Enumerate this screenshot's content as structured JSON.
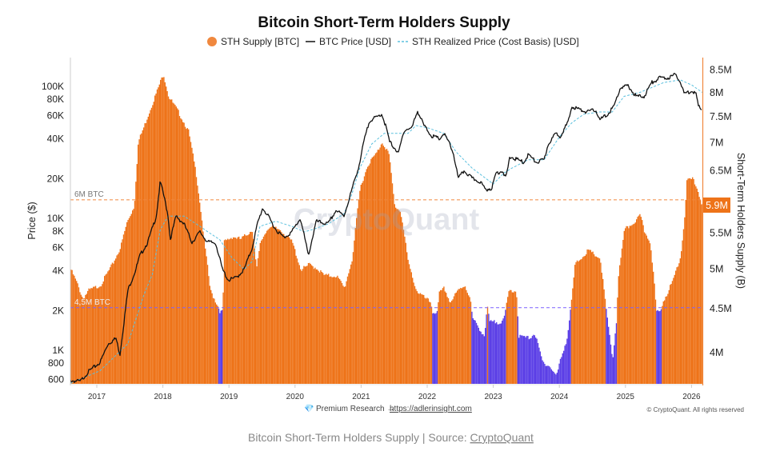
{
  "chart_data": {
    "type": "bar+line",
    "title": "Bitcoin Short-Term Holders Supply",
    "legend": {
      "placement": "top-center",
      "items": [
        {
          "label": "STH Supply [BTC]",
          "color": "#f0883e"
        },
        {
          "label": "BTC Price [USD]",
          "color": "#111111"
        },
        {
          "label": "STH Realized Price (Cost Basis) [USD]",
          "color": "#5bc0de"
        }
      ]
    },
    "ylabel_left": "Price ($)",
    "ylabel_right": "Short-Term Holders Supply (B)",
    "x_ticks": [
      "2017",
      "2018",
      "2019",
      "2020",
      "2021",
      "2022",
      "2023",
      "2024",
      "2025",
      "2026"
    ],
    "xlim": [
      2016.6,
      2026.16
    ],
    "y_left_scale": "log",
    "y_left_ticks": [
      {
        "v": 600,
        "l": "600"
      },
      {
        "v": 800,
        "l": "800"
      },
      {
        "v": 1000,
        "l": "1K"
      },
      {
        "v": 2000,
        "l": "2K"
      },
      {
        "v": 4000,
        "l": "4K"
      },
      {
        "v": 6000,
        "l": "6K"
      },
      {
        "v": 8000,
        "l": "8K"
      },
      {
        "v": 10000,
        "l": "10K"
      },
      {
        "v": 20000,
        "l": "20K"
      },
      {
        "v": 40000,
        "l": "40K"
      },
      {
        "v": 60000,
        "l": "60K"
      },
      {
        "v": 80000,
        "l": "80K"
      },
      {
        "v": 100000,
        "l": "100K"
      }
    ],
    "y_right_scale": "log",
    "y_right_ticks": [
      {
        "v": 4,
        "l": "4M"
      },
      {
        "v": 4.5,
        "l": "4.5M"
      },
      {
        "v": 5,
        "l": "5M"
      },
      {
        "v": 5.5,
        "l": "5.5M"
      },
      {
        "v": 6.5,
        "l": "6.5M"
      },
      {
        "v": 7,
        "l": "7M"
      },
      {
        "v": 7.5,
        "l": "7.5M"
      },
      {
        "v": 8,
        "l": "8M"
      },
      {
        "v": 8.5,
        "l": "8.5M"
      }
    ],
    "current_supply": {
      "value": 5.9,
      "label": "5.9M"
    },
    "reference_lines": [
      {
        "value": 6.0,
        "label": "6M BTC",
        "color": "#f0883e"
      },
      {
        "value": 4.5,
        "label": "4,5M BTC",
        "color": "#7b61ff"
      }
    ],
    "colors": {
      "supply_above": "#ee7319",
      "supply_below": "#5b3fe6",
      "price": "#111111",
      "realized": "#5bc0de",
      "axis_right": "#f0883e"
    },
    "sth_supply_millions": [
      [
        2016.6,
        4.98
      ],
      [
        2016.69,
        4.81
      ],
      [
        2016.78,
        4.61
      ],
      [
        2016.87,
        4.71
      ],
      [
        2017.05,
        4.78
      ],
      [
        2017.23,
        5.05
      ],
      [
        2017.35,
        5.28
      ],
      [
        2017.45,
        5.65
      ],
      [
        2017.56,
        5.9
      ],
      [
        2017.62,
        7.0
      ],
      [
        2017.71,
        7.3
      ],
      [
        2017.9,
        8.0
      ],
      [
        2018.0,
        8.4
      ],
      [
        2018.08,
        7.9
      ],
      [
        2018.22,
        7.6
      ],
      [
        2018.38,
        7.2
      ],
      [
        2018.5,
        6.4
      ],
      [
        2018.62,
        5.36
      ],
      [
        2018.71,
        4.71
      ],
      [
        2018.83,
        4.51
      ],
      [
        2018.86,
        4.45
      ],
      [
        2018.9,
        4.45
      ],
      [
        2018.92,
        5.36
      ],
      [
        2019.05,
        5.44
      ],
      [
        2019.17,
        5.4
      ],
      [
        2019.35,
        5.54
      ],
      [
        2019.41,
        4.98
      ],
      [
        2019.47,
        5.36
      ],
      [
        2019.59,
        5.58
      ],
      [
        2019.77,
        5.54
      ],
      [
        2019.95,
        5.36
      ],
      [
        2020.08,
        4.98
      ],
      [
        2020.17,
        5.02
      ],
      [
        2020.2,
        5.05
      ],
      [
        2020.32,
        5.0
      ],
      [
        2020.44,
        4.9
      ],
      [
        2020.62,
        4.9
      ],
      [
        2020.74,
        4.74
      ],
      [
        2020.86,
        5.13
      ],
      [
        2020.98,
        6.2
      ],
      [
        2021.1,
        6.6
      ],
      [
        2021.23,
        6.8
      ],
      [
        2021.31,
        7.0
      ],
      [
        2021.41,
        6.8
      ],
      [
        2021.5,
        5.9
      ],
      [
        2021.59,
        5.82
      ],
      [
        2021.71,
        5.05
      ],
      [
        2021.83,
        4.71
      ],
      [
        2021.95,
        4.62
      ],
      [
        2022.05,
        4.56
      ],
      [
        2022.07,
        4.45
      ],
      [
        2022.15,
        4.44
      ],
      [
        2022.17,
        4.67
      ],
      [
        2022.25,
        4.74
      ],
      [
        2022.34,
        4.56
      ],
      [
        2022.46,
        4.71
      ],
      [
        2022.56,
        4.78
      ],
      [
        2022.64,
        4.62
      ],
      [
        2022.68,
        4.37
      ],
      [
        2022.86,
        4.17
      ],
      [
        2022.9,
        4.51
      ],
      [
        2022.94,
        4.33
      ],
      [
        2023.1,
        4.33
      ],
      [
        2023.16,
        4.38
      ],
      [
        2023.23,
        4.71
      ],
      [
        2023.34,
        4.71
      ],
      [
        2023.38,
        4.17
      ],
      [
        2023.53,
        4.15
      ],
      [
        2023.62,
        4.2
      ],
      [
        2023.74,
        3.89
      ],
      [
        2023.83,
        3.86
      ],
      [
        2023.95,
        3.75
      ],
      [
        2024.01,
        3.92
      ],
      [
        2024.11,
        4.15
      ],
      [
        2024.17,
        4.52
      ],
      [
        2024.23,
        5.05
      ],
      [
        2024.31,
        5.13
      ],
      [
        2024.43,
        5.24
      ],
      [
        2024.61,
        5.13
      ],
      [
        2024.68,
        4.62
      ],
      [
        2024.74,
        4.23
      ],
      [
        2024.8,
        3.92
      ],
      [
        2024.86,
        4.38
      ],
      [
        2024.88,
        4.84
      ],
      [
        2024.98,
        5.54
      ],
      [
        2025.1,
        5.63
      ],
      [
        2025.22,
        5.75
      ],
      [
        2025.28,
        5.51
      ],
      [
        2025.37,
        5.36
      ],
      [
        2025.43,
        4.78
      ],
      [
        2025.46,
        4.45
      ],
      [
        2025.52,
        4.45
      ],
      [
        2025.55,
        4.55
      ],
      [
        2025.7,
        4.81
      ],
      [
        2025.83,
        5.17
      ],
      [
        2025.89,
        5.75
      ],
      [
        2025.92,
        6.3
      ],
      [
        2026.01,
        6.35
      ],
      [
        2026.07,
        6.2
      ],
      [
        2026.16,
        5.9
      ]
    ],
    "btc_price_usd": [
      [
        2016.6,
        590
      ],
      [
        2016.75,
        580
      ],
      [
        2016.87,
        686
      ],
      [
        2017.05,
        810
      ],
      [
        2017.17,
        1120
      ],
      [
        2017.29,
        1230
      ],
      [
        2017.35,
        930
      ],
      [
        2017.47,
        2850
      ],
      [
        2017.59,
        4100
      ],
      [
        2017.65,
        5190
      ],
      [
        2017.77,
        6580
      ],
      [
        2017.9,
        10400
      ],
      [
        2017.96,
        19000
      ],
      [
        2018.02,
        14400
      ],
      [
        2018.08,
        10400
      ],
      [
        2018.11,
        6860
      ],
      [
        2018.2,
        10400
      ],
      [
        2018.32,
        9060
      ],
      [
        2018.44,
        6580
      ],
      [
        2018.56,
        7880
      ],
      [
        2018.68,
        6600
      ],
      [
        2018.8,
        6500
      ],
      [
        2018.9,
        4100
      ],
      [
        2018.99,
        3400
      ],
      [
        2019.11,
        3550
      ],
      [
        2019.23,
        4100
      ],
      [
        2019.35,
        5960
      ],
      [
        2019.43,
        9060
      ],
      [
        2019.51,
        12000
      ],
      [
        2019.59,
        10400
      ],
      [
        2019.71,
        8200
      ],
      [
        2019.83,
        7150
      ],
      [
        2019.95,
        7880
      ],
      [
        2020.08,
        10000
      ],
      [
        2020.16,
        6580
      ],
      [
        2020.2,
        5200
      ],
      [
        2020.32,
        9470
      ],
      [
        2020.5,
        9060
      ],
      [
        2020.62,
        11500
      ],
      [
        2020.74,
        10400
      ],
      [
        2020.86,
        16500
      ],
      [
        2020.98,
        26500
      ],
      [
        2021.04,
        38000
      ],
      [
        2021.13,
        55500
      ],
      [
        2021.23,
        58000
      ],
      [
        2021.31,
        62000
      ],
      [
        2021.37,
        50500
      ],
      [
        2021.43,
        38000
      ],
      [
        2021.53,
        33000
      ],
      [
        2021.56,
        30500
      ],
      [
        2021.65,
        46500
      ],
      [
        2021.77,
        48500
      ],
      [
        2021.85,
        65500
      ],
      [
        2021.95,
        50500
      ],
      [
        2022.07,
        42000
      ],
      [
        2022.19,
        40000
      ],
      [
        2022.25,
        44000
      ],
      [
        2022.34,
        36500
      ],
      [
        2022.4,
        30500
      ],
      [
        2022.47,
        20000
      ],
      [
        2022.56,
        23000
      ],
      [
        2022.68,
        20000
      ],
      [
        2022.8,
        19000
      ],
      [
        2022.88,
        16500
      ],
      [
        2022.98,
        17000
      ],
      [
        2023.04,
        22000
      ],
      [
        2023.14,
        23000
      ],
      [
        2023.19,
        20000
      ],
      [
        2023.25,
        29000
      ],
      [
        2023.28,
        29000
      ],
      [
        2023.46,
        26500
      ],
      [
        2023.53,
        30500
      ],
      [
        2023.65,
        26500
      ],
      [
        2023.77,
        27800
      ],
      [
        2023.83,
        36600
      ],
      [
        2023.95,
        44000
      ],
      [
        2024.01,
        42000
      ],
      [
        2024.13,
        53000
      ],
      [
        2024.19,
        70500
      ],
      [
        2024.31,
        66500
      ],
      [
        2024.43,
        64000
      ],
      [
        2024.55,
        66500
      ],
      [
        2024.61,
        55500
      ],
      [
        2024.74,
        62000
      ],
      [
        2024.83,
        71500
      ],
      [
        2024.92,
        97000
      ],
      [
        2025.04,
        101000
      ],
      [
        2025.16,
        84000
      ],
      [
        2025.28,
        84000
      ],
      [
        2025.4,
        107000
      ],
      [
        2025.52,
        116000
      ],
      [
        2025.64,
        116000
      ],
      [
        2025.77,
        123000
      ],
      [
        2025.83,
        107000
      ],
      [
        2025.89,
        88000
      ],
      [
        2026.01,
        93000
      ],
      [
        2026.07,
        88000
      ],
      [
        2026.1,
        70500
      ],
      [
        2026.16,
        66500
      ]
    ],
    "sth_realized_price_usd": [
      [
        2016.6,
        560
      ],
      [
        2017.05,
        700
      ],
      [
        2017.47,
        1120
      ],
      [
        2017.71,
        2600
      ],
      [
        2017.84,
        3760
      ],
      [
        2017.96,
        8200
      ],
      [
        2018.08,
        10400
      ],
      [
        2018.32,
        10400
      ],
      [
        2018.56,
        8700
      ],
      [
        2018.68,
        7900
      ],
      [
        2018.86,
        6900
      ],
      [
        2019.05,
        5000
      ],
      [
        2019.23,
        4100
      ],
      [
        2019.35,
        4700
      ],
      [
        2019.47,
        8700
      ],
      [
        2019.71,
        9500
      ],
      [
        2019.95,
        8700
      ],
      [
        2020.14,
        7900
      ],
      [
        2020.26,
        8200
      ],
      [
        2020.5,
        9060
      ],
      [
        2020.74,
        10800
      ],
      [
        2020.86,
        15200
      ],
      [
        2020.98,
        24000
      ],
      [
        2021.16,
        36500
      ],
      [
        2021.35,
        44000
      ],
      [
        2021.53,
        44000
      ],
      [
        2021.71,
        44000
      ],
      [
        2021.83,
        50500
      ],
      [
        2022.01,
        48500
      ],
      [
        2022.25,
        44000
      ],
      [
        2022.44,
        31800
      ],
      [
        2022.68,
        24000
      ],
      [
        2023.0,
        18200
      ],
      [
        2023.16,
        22000
      ],
      [
        2023.28,
        24000
      ],
      [
        2023.53,
        27800
      ],
      [
        2023.77,
        27800
      ],
      [
        2024.01,
        42000
      ],
      [
        2024.19,
        53000
      ],
      [
        2024.37,
        61500
      ],
      [
        2024.61,
        64000
      ],
      [
        2024.8,
        64000
      ],
      [
        2024.98,
        84000
      ],
      [
        2025.22,
        90000
      ],
      [
        2025.58,
        107000
      ],
      [
        2025.83,
        112000
      ],
      [
        2026.01,
        102000
      ],
      [
        2026.16,
        90000
      ]
    ]
  },
  "watermark": "CryptoQuant",
  "footer": {
    "premium_label": "Premium Research →",
    "premium_link": "https://adlerinsight.com",
    "copyright": "© CryptoQuant. All rights reserved"
  },
  "caption": {
    "text": "Bitcoin Short-Term Holders Supply | Source: ",
    "source_link": "CryptoQuant"
  }
}
